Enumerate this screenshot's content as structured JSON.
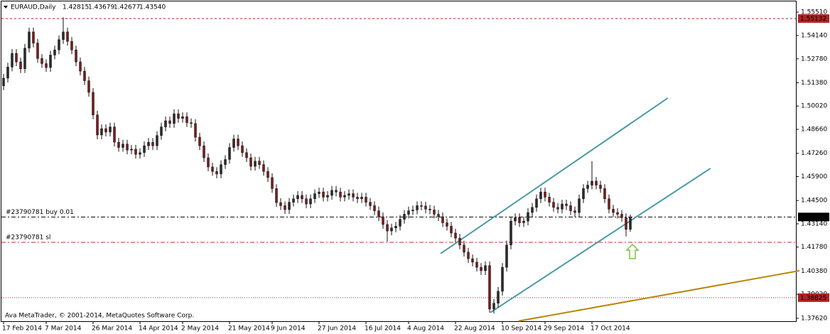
{
  "chart_data": {
    "type": "candlestick",
    "header": {
      "symbol": "EURAUD,Daily",
      "ohlc_text": [
        "1.42815",
        "1.43679",
        "1.42677",
        "1.43540"
      ]
    },
    "copyright": "Ava MetaTrader, © 2001-2014, MetaQuotes Software Corp.",
    "up_color": "#2b2b2b",
    "down_color": "#7b1c1c",
    "wick_color": "#111111",
    "ylim": [
      1.3745,
      1.5605
    ],
    "yticks": [
      {
        "value": 1.5551,
        "label": "1.55510"
      },
      {
        "value": 1.5414,
        "label": "1.54140"
      },
      {
        "value": 1.5278,
        "label": "1.52780"
      },
      {
        "value": 1.5138,
        "label": "1.51380"
      },
      {
        "value": 1.5002,
        "label": "1.50020"
      },
      {
        "value": 1.4866,
        "label": "1.48660"
      },
      {
        "value": 1.4726,
        "label": "1.47260"
      },
      {
        "value": 1.459,
        "label": "1.45900"
      },
      {
        "value": 1.445,
        "label": "1.44500"
      },
      {
        "value": 1.4314,
        "label": "1.43140"
      },
      {
        "value": 1.4178,
        "label": "1.41780"
      },
      {
        "value": 1.4038,
        "label": "1.40380"
      },
      {
        "value": 1.3902,
        "label": "1.39020"
      },
      {
        "value": 1.3762,
        "label": "1.37620"
      }
    ],
    "categories": [
      "17 Feb 2014",
      null,
      null,
      null,
      null,
      null,
      null,
      null,
      null,
      null,
      "7 Mar 2014",
      null,
      null,
      null,
      null,
      null,
      null,
      null,
      null,
      null,
      null,
      "26 Mar 2014",
      null,
      null,
      null,
      null,
      null,
      null,
      null,
      null,
      null,
      null,
      "14 Apr 2014",
      null,
      null,
      null,
      null,
      null,
      null,
      null,
      null,
      null,
      "2 May 2014",
      null,
      null,
      null,
      null,
      null,
      null,
      null,
      null,
      null,
      null,
      "21 May 2014",
      null,
      null,
      null,
      null,
      null,
      null,
      null,
      null,
      null,
      "9 Jun 2014",
      null,
      null,
      null,
      null,
      null,
      null,
      null,
      null,
      null,
      null,
      "27 Jun 2014",
      null,
      null,
      null,
      null,
      null,
      null,
      null,
      null,
      null,
      null,
      "16 Jul 2014",
      null,
      null,
      null,
      null,
      null,
      null,
      null,
      null,
      null,
      "4 Aug 2014",
      null,
      null,
      null,
      null,
      null,
      null,
      null,
      null,
      null,
      null,
      "22 Aug 2014",
      null,
      null,
      null,
      null,
      null,
      null,
      null,
      null,
      null,
      null,
      "10 Sep 2014",
      null,
      null,
      null,
      null,
      null,
      null,
      null,
      null,
      null,
      "29 Sep 2014",
      null,
      null,
      null,
      null,
      null,
      null,
      null,
      null,
      null,
      null,
      "17 Oct 2014",
      null,
      null,
      null,
      null,
      null,
      null,
      null,
      null,
      null
    ],
    "ohlc": [
      [
        1.512,
        1.519,
        1.5095,
        1.5165
      ],
      [
        1.5165,
        1.5255,
        1.514,
        1.523
      ],
      [
        1.523,
        1.5335,
        1.5205,
        1.531
      ],
      [
        1.531,
        1.5335,
        1.5235,
        1.526
      ],
      [
        1.526,
        1.5285,
        1.5195,
        1.522
      ],
      [
        1.522,
        1.5365,
        1.5195,
        1.534
      ],
      [
        1.534,
        1.546,
        1.5315,
        1.5435
      ],
      [
        1.5435,
        1.546,
        1.5345,
        1.537
      ],
      [
        1.537,
        1.5395,
        1.5255,
        1.528
      ],
      [
        1.528,
        1.5305,
        1.5225,
        1.525
      ],
      [
        1.525,
        1.5275,
        1.5202,
        1.5227
      ],
      [
        1.5227,
        1.5325,
        1.5202,
        1.53
      ],
      [
        1.53,
        1.5355,
        1.5275,
        1.533
      ],
      [
        1.533,
        1.5415,
        1.5305,
        1.539
      ],
      [
        1.539,
        1.552,
        1.5365,
        1.5435
      ],
      [
        1.5435,
        1.546,
        1.5355,
        1.538
      ],
      [
        1.538,
        1.5405,
        1.5305,
        1.533
      ],
      [
        1.533,
        1.5355,
        1.5235,
        1.526
      ],
      [
        1.526,
        1.5285,
        1.5181,
        1.5206
      ],
      [
        1.5206,
        1.5231,
        1.5125,
        1.515
      ],
      [
        1.515,
        1.5175,
        1.5057,
        1.5082
      ],
      [
        1.5082,
        1.5107,
        1.4925,
        1.495
      ],
      [
        1.495,
        1.4975,
        1.4808,
        1.4833
      ],
      [
        1.4833,
        1.4895,
        1.4808,
        1.487
      ],
      [
        1.487,
        1.4895,
        1.4825,
        1.485
      ],
      [
        1.485,
        1.4905,
        1.4825,
        1.488
      ],
      [
        1.488,
        1.4905,
        1.4766,
        1.4791
      ],
      [
        1.4791,
        1.4816,
        1.4735,
        1.476
      ],
      [
        1.476,
        1.4805,
        1.4735,
        1.478
      ],
      [
        1.478,
        1.4805,
        1.472,
        1.4745
      ],
      [
        1.4745,
        1.4775,
        1.472,
        1.475
      ],
      [
        1.475,
        1.4775,
        1.4695,
        1.472
      ],
      [
        1.472,
        1.4755,
        1.4695,
        1.473
      ],
      [
        1.473,
        1.4795,
        1.4705,
        1.477
      ],
      [
        1.477,
        1.4815,
        1.4745,
        1.479
      ],
      [
        1.479,
        1.4815,
        1.4745,
        1.477
      ],
      [
        1.477,
        1.4855,
        1.4745,
        1.483
      ],
      [
        1.483,
        1.4905,
        1.4805,
        1.488
      ],
      [
        1.488,
        1.4941,
        1.4855,
        1.4916
      ],
      [
        1.4916,
        1.4941,
        1.4875,
        1.49
      ],
      [
        1.49,
        1.4982,
        1.4875,
        1.4957
      ],
      [
        1.4957,
        1.4982,
        1.4905,
        1.493
      ],
      [
        1.493,
        1.4965,
        1.4905,
        1.494
      ],
      [
        1.494,
        1.4965,
        1.488,
        1.4905
      ],
      [
        1.4905,
        1.493,
        1.4875,
        1.49
      ],
      [
        1.49,
        1.4925,
        1.4795,
        1.482
      ],
      [
        1.482,
        1.4845,
        1.4745,
        1.477
      ],
      [
        1.477,
        1.4795,
        1.4675,
        1.47
      ],
      [
        1.47,
        1.4725,
        1.4621,
        1.4646
      ],
      [
        1.4646,
        1.4671,
        1.4595,
        1.462
      ],
      [
        1.462,
        1.4645,
        1.458,
        1.4605
      ],
      [
        1.4605,
        1.4685,
        1.458,
        1.466
      ],
      [
        1.466,
        1.4715,
        1.4635,
        1.469
      ],
      [
        1.469,
        1.4785,
        1.4665,
        1.476
      ],
      [
        1.476,
        1.4835,
        1.4735,
        1.481
      ],
      [
        1.481,
        1.4835,
        1.4745,
        1.477
      ],
      [
        1.477,
        1.4795,
        1.4705,
        1.473
      ],
      [
        1.473,
        1.4755,
        1.4675,
        1.47
      ],
      [
        1.47,
        1.4725,
        1.4625,
        1.465
      ],
      [
        1.465,
        1.4705,
        1.4625,
        1.468
      ],
      [
        1.468,
        1.4705,
        1.4635,
        1.466
      ],
      [
        1.466,
        1.4685,
        1.4595,
        1.462
      ],
      [
        1.462,
        1.4645,
        1.4559,
        1.4584
      ],
      [
        1.4584,
        1.4609,
        1.4495,
        1.452
      ],
      [
        1.452,
        1.4545,
        1.4413,
        1.4438
      ],
      [
        1.4438,
        1.4463,
        1.4395,
        1.442
      ],
      [
        1.442,
        1.4445,
        1.4372,
        1.4397
      ],
      [
        1.4397,
        1.4465,
        1.4372,
        1.444
      ],
      [
        1.444,
        1.4485,
        1.4415,
        1.446
      ],
      [
        1.446,
        1.4505,
        1.4435,
        1.448
      ],
      [
        1.448,
        1.4505,
        1.4435,
        1.446
      ],
      [
        1.446,
        1.4485,
        1.4405,
        1.443
      ],
      [
        1.443,
        1.4485,
        1.4405,
        1.446
      ],
      [
        1.446,
        1.4515,
        1.4435,
        1.449
      ],
      [
        1.449,
        1.4525,
        1.4465,
        1.45
      ],
      [
        1.45,
        1.4525,
        1.4445,
        1.447
      ],
      [
        1.447,
        1.4505,
        1.4445,
        1.448
      ],
      [
        1.448,
        1.4535,
        1.4455,
        1.451
      ],
      [
        1.451,
        1.4535,
        1.4475,
        1.45
      ],
      [
        1.45,
        1.4525,
        1.4445,
        1.447
      ],
      [
        1.447,
        1.4505,
        1.4445,
        1.448
      ],
      [
        1.448,
        1.4515,
        1.4455,
        1.449
      ],
      [
        1.449,
        1.4515,
        1.4445,
        1.447
      ],
      [
        1.447,
        1.4495,
        1.4435,
        1.446
      ],
      [
        1.446,
        1.4495,
        1.4435,
        1.447
      ],
      [
        1.447,
        1.4495,
        1.4415,
        1.444
      ],
      [
        1.444,
        1.4465,
        1.4395,
        1.442
      ],
      [
        1.442,
        1.4445,
        1.4365,
        1.439
      ],
      [
        1.439,
        1.4415,
        1.433,
        1.4355
      ],
      [
        1.4355,
        1.438,
        1.4285,
        1.431
      ],
      [
        1.431,
        1.4335,
        1.421,
        1.4272
      ],
      [
        1.4272,
        1.4315,
        1.4247,
        1.429
      ],
      [
        1.429,
        1.4325,
        1.4265,
        1.43
      ],
      [
        1.43,
        1.4365,
        1.4275,
        1.434
      ],
      [
        1.434,
        1.4395,
        1.4315,
        1.437
      ],
      [
        1.437,
        1.4415,
        1.4345,
        1.439
      ],
      [
        1.439,
        1.442,
        1.4365,
        1.4395
      ],
      [
        1.4395,
        1.4445,
        1.437,
        1.442
      ],
      [
        1.442,
        1.4445,
        1.4393,
        1.4418
      ],
      [
        1.4418,
        1.4443,
        1.4375,
        1.44
      ],
      [
        1.44,
        1.4425,
        1.437,
        1.4395
      ],
      [
        1.4395,
        1.442,
        1.4345,
        1.437
      ],
      [
        1.437,
        1.4395,
        1.433,
        1.4355
      ],
      [
        1.4355,
        1.438,
        1.4295,
        1.432
      ],
      [
        1.432,
        1.4345,
        1.4275,
        1.43
      ],
      [
        1.43,
        1.4325,
        1.4235,
        1.426
      ],
      [
        1.426,
        1.4285,
        1.4205,
        1.423
      ],
      [
        1.423,
        1.4255,
        1.4165,
        1.419
      ],
      [
        1.419,
        1.4215,
        1.4123,
        1.4148
      ],
      [
        1.4148,
        1.4173,
        1.4085,
        1.411
      ],
      [
        1.411,
        1.4135,
        1.4065,
        1.409
      ],
      [
        1.409,
        1.4115,
        1.4035,
        1.406
      ],
      [
        1.406,
        1.4085,
        1.4015,
        1.404
      ],
      [
        1.404,
        1.4095,
        1.4015,
        1.407
      ],
      [
        1.407,
        1.4095,
        1.3795,
        1.3816
      ],
      [
        1.3816,
        1.3875,
        1.379,
        1.385
      ],
      [
        1.385,
        1.3945,
        1.3825,
        1.392
      ],
      [
        1.392,
        1.4085,
        1.3895,
        1.406
      ],
      [
        1.406,
        1.4215,
        1.4035,
        1.419
      ],
      [
        1.419,
        1.4355,
        1.4165,
        1.433
      ],
      [
        1.433,
        1.4375,
        1.4305,
        1.435
      ],
      [
        1.435,
        1.4375,
        1.4295,
        1.432
      ],
      [
        1.432,
        1.4355,
        1.4295,
        1.433
      ],
      [
        1.433,
        1.4405,
        1.4305,
        1.438
      ],
      [
        1.438,
        1.4435,
        1.4355,
        1.441
      ],
      [
        1.441,
        1.4485,
        1.4385,
        1.446
      ],
      [
        1.446,
        1.4525,
        1.4435,
        1.45
      ],
      [
        1.45,
        1.4525,
        1.4445,
        1.447
      ],
      [
        1.447,
        1.4495,
        1.4415,
        1.444
      ],
      [
        1.444,
        1.4465,
        1.4385,
        1.441
      ],
      [
        1.441,
        1.4435,
        1.4375,
        1.44
      ],
      [
        1.44,
        1.4455,
        1.4375,
        1.443
      ],
      [
        1.443,
        1.4455,
        1.4395,
        1.442
      ],
      [
        1.442,
        1.4445,
        1.4365,
        1.439
      ],
      [
        1.439,
        1.4415,
        1.4355,
        1.438
      ],
      [
        1.438,
        1.4485,
        1.4355,
        1.446
      ],
      [
        1.446,
        1.4545,
        1.4435,
        1.452
      ],
      [
        1.452,
        1.4565,
        1.4495,
        1.454
      ],
      [
        1.454,
        1.468,
        1.4515,
        1.4563
      ],
      [
        1.4563,
        1.4588,
        1.4515,
        1.454
      ],
      [
        1.454,
        1.4565,
        1.4495,
        1.452
      ],
      [
        1.452,
        1.4545,
        1.4435,
        1.446
      ],
      [
        1.446,
        1.4485,
        1.4375,
        1.44
      ],
      [
        1.44,
        1.4425,
        1.4355,
        1.438
      ],
      [
        1.438,
        1.4405,
        1.4345,
        1.437
      ],
      [
        1.437,
        1.4395,
        1.4325,
        1.435
      ],
      [
        1.435,
        1.4375,
        1.424,
        1.4282
      ],
      [
        1.42815,
        1.43679,
        1.42677,
        1.4354
      ]
    ],
    "levels": [
      {
        "value": 1.55132,
        "color": "#b22222",
        "style": "dash",
        "box": true
      },
      {
        "value": {
          "value": 1.4354,
          "label": "1.43540"
        },
        "color": "#000000",
        "style": "dashdot",
        "box": true,
        "text": "#23790781 buy 0.01"
      },
      {
        "value": 1.4206,
        "color": "#c82828",
        "style": "dashdot",
        "box": false,
        "text": "#23790781 sl"
      },
      {
        "value": 1.38825,
        "color": "#b22222",
        "style": "dot",
        "box": true
      }
    ],
    "trendlines": [
      {
        "from": [
          102.5,
          1.414
        ],
        "to": [
          155.8,
          1.5049
        ],
        "color": "#4a9aa5"
      },
      {
        "from": [
          114.2,
          1.3796
        ],
        "to": [
          165.8,
          1.4638
        ],
        "color": "#4a9aa5"
      },
      {
        "from": [
          120.8,
          1.3746
        ],
        "to": [
          186.7,
          1.404
        ],
        "color": "#b8860b"
      }
    ]
  }
}
